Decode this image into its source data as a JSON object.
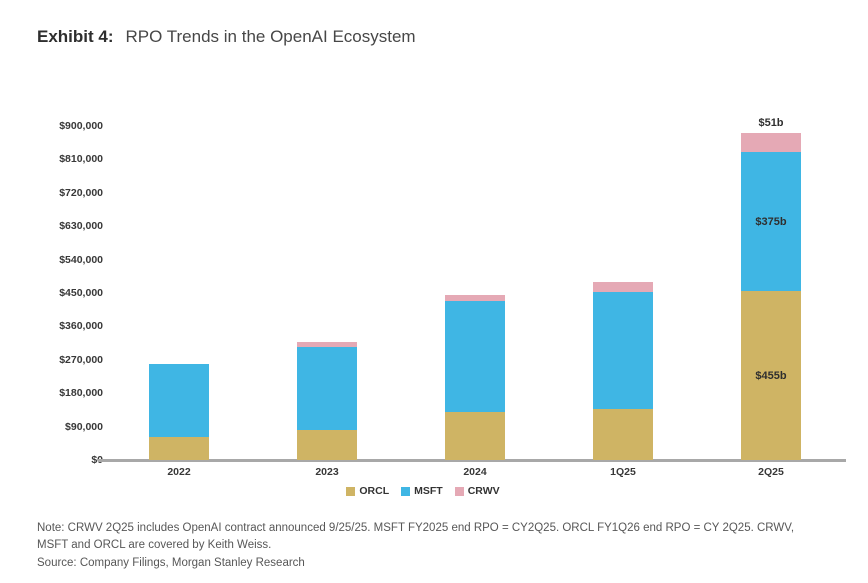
{
  "header": {
    "exhibit_label": "Exhibit 4:",
    "title": "RPO Trends in the OpenAI Ecosystem"
  },
  "chart_data": {
    "type": "bar",
    "stacked": true,
    "title": "RPO Trends in the OpenAI Ecosystem",
    "unit": "$ millions",
    "categories": [
      "2022",
      "2023",
      "2024",
      "1Q25",
      "2Q25"
    ],
    "series": [
      {
        "name": "ORCL",
        "color": "#cfb464",
        "values": [
          62000,
          80000,
          130000,
          138000,
          455000
        ]
      },
      {
        "name": "MSFT",
        "color": "#3fb6e4",
        "values": [
          196000,
          224000,
          298000,
          315000,
          375000
        ]
      },
      {
        "name": "CRWV",
        "color": "#e5a9b5",
        "values": [
          0,
          13000,
          17000,
          26000,
          51000
        ]
      }
    ],
    "ylim": [
      0,
      900000
    ],
    "y_ticks": [
      {
        "value": 0,
        "label": "$0"
      },
      {
        "value": 90000,
        "label": "$90,000"
      },
      {
        "value": 180000,
        "label": "$180,000"
      },
      {
        "value": 270000,
        "label": "$270,000"
      },
      {
        "value": 360000,
        "label": "$360,000"
      },
      {
        "value": 450000,
        "label": "$450,000"
      },
      {
        "value": 540000,
        "label": "$540,000"
      },
      {
        "value": 630000,
        "label": "$630,000"
      },
      {
        "value": 720000,
        "label": "$720,000"
      },
      {
        "value": 810000,
        "label": "$810,000"
      },
      {
        "value": 900000,
        "label": "$900,000"
      }
    ],
    "annotations": [
      {
        "category": "2Q25",
        "series": "ORCL",
        "text": "$455b",
        "placement": "inside"
      },
      {
        "category": "2Q25",
        "series": "MSFT",
        "text": "$375b",
        "placement": "inside"
      },
      {
        "category": "2Q25",
        "series": "CRWV",
        "text": "$51b",
        "placement": "above"
      }
    ],
    "legend": [
      "ORCL",
      "MSFT",
      "CRWV"
    ],
    "legend_position": "bottom",
    "grid": false,
    "axis_line_color": "#a8a8a8"
  },
  "footnote": {
    "note": "Note: CRWV 2Q25 includes OpenAI contract announced 9/25/25. MSFT FY2025 end RPO = CY2Q25. ORCL FY1Q26 end RPO = CY 2Q25. CRWV, MSFT and ORCL are covered by Keith Weiss.",
    "source": "Source: Company Filings, Morgan Stanley Research"
  }
}
